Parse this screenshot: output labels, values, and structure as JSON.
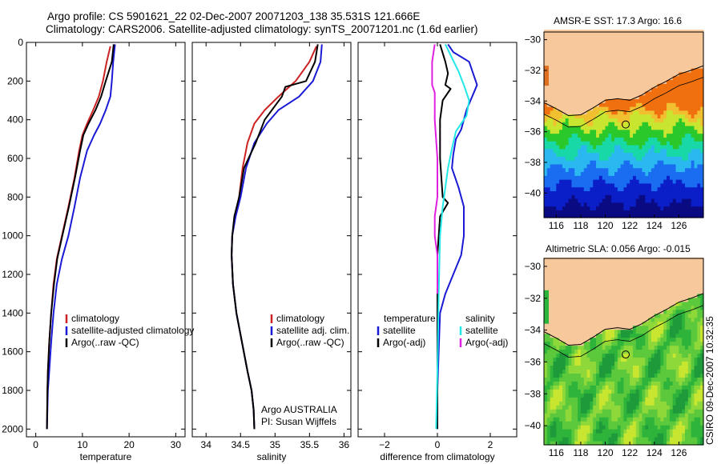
{
  "header": {
    "line1": "Argo profile: CS 5901621_22 02-Dec-2007 20071203_138 35.531S 121.666E",
    "line2": "Climatology: CARS2006. Satellite-adjusted climatology: synTS_20071201.nc (1.6d earlier)"
  },
  "credit": "CSIRO 09-Dec-2007 10:32:35",
  "colors": {
    "climatology": "#cc2222",
    "satellite": "#1a1ad6",
    "argo": "#000000",
    "salinity_sat": "#22e8e8",
    "salinity_argo": "#e020e0",
    "land": "#f7c89b",
    "profile_marker": "#000000"
  },
  "chart_data": [
    {
      "type": "line",
      "id": "temperature",
      "xlabel": "temperature",
      "ylabel": "",
      "xlim": [
        -2,
        32
      ],
      "ylim": [
        2040,
        0
      ],
      "y_reversed": true,
      "xticks": [
        0,
        10,
        20,
        30
      ],
      "yticks": [
        0,
        200,
        400,
        600,
        800,
        1000,
        1200,
        1400,
        1600,
        1800,
        2000
      ],
      "legend": {
        "position": "lower-right",
        "entries": [
          "climatology",
          "satellite-adjusted climatology",
          "Argo(..raw -QC)"
        ]
      },
      "series": [
        {
          "name": "climatology",
          "color": "#cc2222",
          "x": [
            16.0,
            15.2,
            14.4,
            13.5,
            12.3,
            11.0,
            10.0,
            9.3,
            8.3,
            7.0,
            5.6,
            4.5,
            3.8,
            3.3,
            2.9,
            2.6,
            2.5,
            2.45,
            2.4
          ],
          "y": [
            20,
            100,
            200,
            280,
            350,
            420,
            480,
            560,
            700,
            850,
            1000,
            1120,
            1250,
            1400,
            1550,
            1700,
            1800,
            1900,
            2000
          ]
        },
        {
          "name": "satellite-adjusted climatology",
          "color": "#1a1ad6",
          "x": [
            17.0,
            16.6,
            16.3,
            16.0,
            15.0,
            13.8,
            12.5,
            11.0,
            9.5,
            8.3,
            7.0,
            5.6,
            4.5,
            3.8,
            3.3,
            2.9,
            2.6,
            2.5,
            2.4
          ],
          "y": [
            10,
            100,
            200,
            280,
            350,
            420,
            480,
            560,
            700,
            850,
            1000,
            1120,
            1250,
            1400,
            1550,
            1700,
            1800,
            1900,
            2000
          ]
        },
        {
          "name": "Argo(..raw -QC)",
          "color": "#000000",
          "x": [
            16.7,
            16.3,
            15.0,
            14.0,
            12.8,
            11.3,
            10.2,
            9.5,
            8.4,
            7.1,
            5.7,
            4.6,
            3.9,
            3.3,
            2.9,
            2.6,
            2.5,
            2.45,
            2.4
          ],
          "y": [
            10,
            100,
            200,
            280,
            350,
            420,
            480,
            560,
            700,
            850,
            1000,
            1120,
            1250,
            1400,
            1550,
            1700,
            1800,
            1900,
            2000
          ]
        }
      ]
    },
    {
      "type": "line",
      "id": "salinity",
      "xlabel": "salinity",
      "ylabel": "",
      "xlim": [
        33.8,
        36.1
      ],
      "ylim": [
        2040,
        0
      ],
      "y_reversed": true,
      "xticks": [
        34,
        34.5,
        35,
        35.5,
        36
      ],
      "tick_labels": [
        "34",
        "34.5",
        "35",
        "35.5",
        "36"
      ],
      "legend": {
        "position": "lower-right",
        "entries": [
          "climatology",
          "satellite adj. clim.",
          "Argo(..raw -QC)"
        ]
      },
      "note_lines": [
        "Argo AUSTRALIA",
        "PI: Susan Wijffels"
      ],
      "series": [
        {
          "name": "climatology",
          "color": "#cc2222",
          "x": [
            35.6,
            35.5,
            35.3,
            35.05,
            34.85,
            34.7,
            34.6,
            34.53,
            34.48,
            34.42,
            34.38,
            34.37,
            34.39,
            34.44,
            34.52,
            34.6,
            34.66,
            34.69,
            34.7
          ],
          "y": [
            20,
            100,
            200,
            280,
            350,
            420,
            520,
            650,
            800,
            900,
            1000,
            1100,
            1250,
            1400,
            1550,
            1700,
            1800,
            1900,
            2000
          ]
        },
        {
          "name": "satellite adj. clim.",
          "color": "#1a1ad6",
          "x": [
            35.68,
            35.66,
            35.55,
            35.35,
            35.05,
            34.88,
            34.7,
            34.58,
            34.5,
            34.43,
            34.38,
            34.37,
            34.39,
            34.44,
            34.52,
            34.6,
            34.66,
            34.69,
            34.7
          ],
          "y": [
            10,
            100,
            200,
            280,
            350,
            420,
            520,
            650,
            800,
            900,
            1000,
            1100,
            1250,
            1400,
            1550,
            1700,
            1800,
            1900,
            2000
          ]
        },
        {
          "name": "Argo(..raw -QC)",
          "color": "#000000",
          "x": [
            35.62,
            35.58,
            35.45,
            35.15,
            35.1,
            34.85,
            34.72,
            34.55,
            34.48,
            34.41,
            34.38,
            34.37,
            34.39,
            34.44,
            34.52,
            34.6,
            34.66,
            34.69,
            34.7
          ],
          "y": [
            10,
            100,
            200,
            230,
            280,
            400,
            520,
            650,
            800,
            900,
            1000,
            1100,
            1250,
            1400,
            1550,
            1700,
            1800,
            1900,
            2000
          ]
        }
      ]
    },
    {
      "type": "line",
      "id": "difference",
      "xlabel": "difference from climatology",
      "ylabel": "",
      "xlim": [
        -3,
        3
      ],
      "ylim": [
        2040,
        0
      ],
      "y_reversed": true,
      "xticks": [
        -2,
        0,
        2
      ],
      "legend": {
        "position": "lower-center",
        "groups": [
          {
            "title": "temperature",
            "entries": [
              "satellite",
              "Argo(-adj)"
            ]
          },
          {
            "title": "salinity",
            "entries": [
              "satellite",
              "Argo(-adj)"
            ]
          }
        ]
      },
      "series": [
        {
          "name": "temperature satellite",
          "color": "#1a1ad6",
          "x": [
            0.4,
            0.6,
            1.2,
            1.5,
            1.1,
            0.9,
            0.7,
            0.6,
            0.55,
            0.8,
            1.0,
            1.0,
            0.9,
            0.6,
            0.3,
            0.1,
            0.05,
            0.0,
            0.0,
            0.0
          ],
          "y": [
            10,
            50,
            100,
            220,
            350,
            450,
            500,
            580,
            650,
            750,
            850,
            1000,
            1100,
            1200,
            1300,
            1400,
            1600,
            1800,
            1900,
            2000
          ]
        },
        {
          "name": "temperature Argo(-adj)",
          "color": "#000000",
          "x": [
            0.1,
            0.3,
            0.4,
            0.3,
            0.5,
            0.2,
            0.1,
            0.1,
            0.2,
            0.4,
            0.1,
            0.0,
            0.0,
            0.0
          ],
          "y": [
            10,
            100,
            160,
            220,
            240,
            300,
            400,
            600,
            800,
            830,
            900,
            1100,
            1500,
            2000
          ]
        },
        {
          "name": "salinity satellite",
          "color": "#22e8e8",
          "x": [
            0.3,
            0.8,
            1.0,
            1.2,
            1.1,
            0.9,
            0.7,
            0.55,
            0.4,
            0.2,
            0.1,
            0.05,
            0.0,
            -0.05
          ],
          "y": [
            10,
            150,
            220,
            300,
            380,
            420,
            460,
            550,
            650,
            850,
            1000,
            1300,
            1700,
            2000
          ]
        },
        {
          "name": "salinity Argo(-adj)",
          "color": "#e020e0",
          "x": [
            -0.1,
            -0.2,
            -0.2,
            -0.1,
            -0.1,
            0.0,
            0.0,
            -0.1,
            -0.1,
            0.0,
            0.0
          ],
          "y": [
            10,
            100,
            220,
            260,
            400,
            600,
            800,
            900,
            1000,
            1100,
            1300
          ]
        }
      ]
    },
    {
      "type": "heatmap",
      "id": "sst-map",
      "title": "AMSR-E SST: 17.3 Argo: 16.6",
      "xlim": [
        115,
        128
      ],
      "ylim": [
        -41.6,
        -29.5
      ],
      "xticks": [
        116,
        118,
        120,
        122,
        124,
        126
      ],
      "yticks": [
        -30,
        -32,
        -34,
        -36,
        -38,
        -40
      ],
      "profile_location": {
        "lon": 121.666,
        "lat": -35.531
      }
    },
    {
      "type": "heatmap",
      "id": "sla-map",
      "title": "Altimetric SLA: 0.056 Argo: -0.015",
      "xlim": [
        115,
        128
      ],
      "ylim": [
        -41.2,
        -29.5
      ],
      "xticks": [
        116,
        118,
        120,
        122,
        124,
        126
      ],
      "yticks": [
        -30,
        -32,
        -34,
        -36,
        -38,
        -40
      ],
      "profile_location": {
        "lon": 121.666,
        "lat": -35.531
      }
    }
  ]
}
